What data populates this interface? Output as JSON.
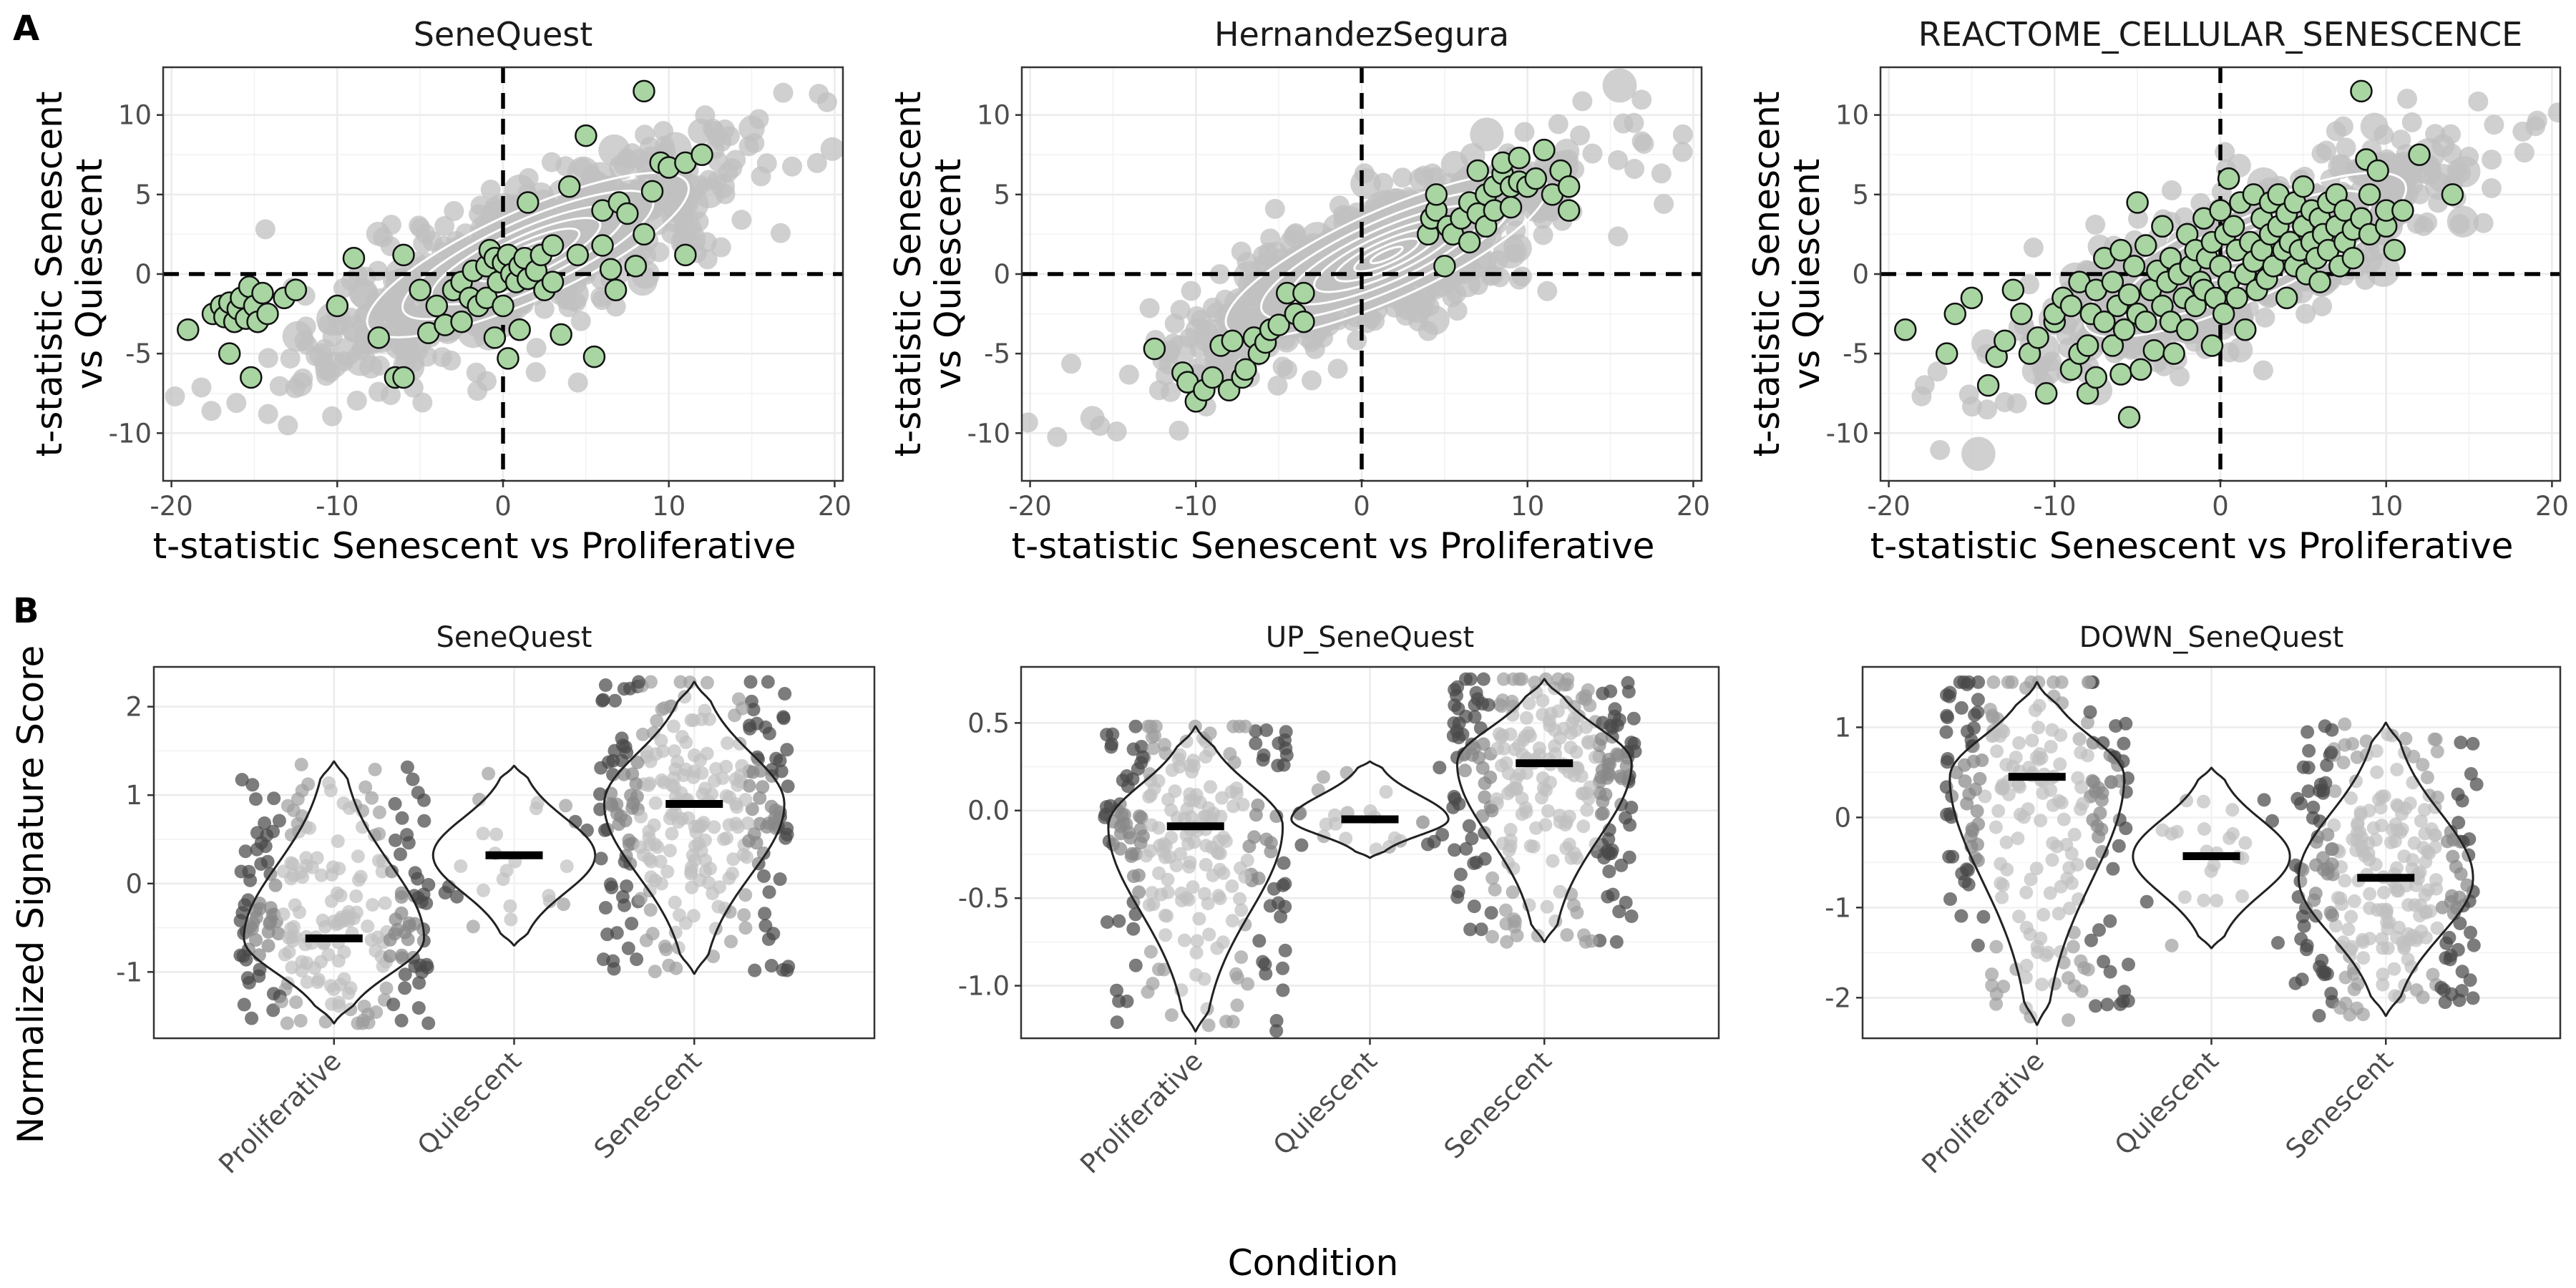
{
  "panel_labels": [
    "A",
    "B"
  ],
  "colors": {
    "background_cloud": "#c0c0c0",
    "highlight_fill": "#a8d5a2",
    "contour": "#ffffff",
    "jitter_point": "#4a4a4a",
    "jitter_point_light": "#9e9e9e",
    "median_bar": "#000000"
  },
  "shared_labels": {
    "scatter_x": "t-statistic Senescent vs Proliferative",
    "scatter_y_line1": "t-statistic Senescent",
    "scatter_y_line2": "vs Quiescent",
    "violin_y": "Normalized Signature Score",
    "violin_x": "Condition"
  },
  "chart_data": [
    {
      "type": "scatter",
      "title": "SeneQuest",
      "xlim": [
        -20.5,
        20.5
      ],
      "ylim": [
        -13,
        13
      ],
      "x_ticks": [
        -20,
        -10,
        0,
        10,
        20
      ],
      "y_ticks": [
        -10,
        -5,
        0,
        5,
        10
      ],
      "grid": true,
      "reference_lines": {
        "x": 0,
        "y": 0
      },
      "background": "approximately 12,000 genes forming a grey cloud with white density contours centred near (1, 1)",
      "highlighted_genes": [
        [
          -19,
          -3.5
        ],
        [
          -17.5,
          -2.5
        ],
        [
          -17,
          -2
        ],
        [
          -16.8,
          -2.7
        ],
        [
          -16.5,
          -1.8
        ],
        [
          -16.2,
          -3
        ],
        [
          -16,
          -2.2
        ],
        [
          -15.8,
          -1.5
        ],
        [
          -15.5,
          -2.8
        ],
        [
          -15.3,
          -0.8
        ],
        [
          -15,
          -2
        ],
        [
          -14.8,
          -3
        ],
        [
          -14.5,
          -1.2
        ],
        [
          -14.2,
          -2.5
        ],
        [
          -16.5,
          -5
        ],
        [
          -15.2,
          -6.5
        ],
        [
          -13.2,
          -1.5
        ],
        [
          -12.5,
          -1
        ],
        [
          -10,
          -2
        ],
        [
          -9,
          1
        ],
        [
          -7.5,
          -4
        ],
        [
          -6.5,
          -6.5
        ],
        [
          -6,
          -6.5
        ],
        [
          -6,
          1.2
        ],
        [
          -5,
          -1
        ],
        [
          -4.5,
          -3.7
        ],
        [
          -4,
          -2
        ],
        [
          -3.5,
          -3.2
        ],
        [
          -3,
          -1
        ],
        [
          -2.5,
          -3
        ],
        [
          -2.5,
          -0.5
        ],
        [
          -2,
          -1.5
        ],
        [
          -1.8,
          0.2
        ],
        [
          -1.5,
          -2
        ],
        [
          -1,
          0.5
        ],
        [
          -1,
          -1.5
        ],
        [
          -0.8,
          1.5
        ],
        [
          -0.5,
          1
        ],
        [
          -0.5,
          -4
        ],
        [
          -0.3,
          -0.5
        ],
        [
          0,
          0.7
        ],
        [
          0,
          -2
        ],
        [
          0.3,
          1.2
        ],
        [
          0.3,
          -5.3
        ],
        [
          0.5,
          0
        ],
        [
          0.8,
          -0.5
        ],
        [
          1,
          0.5
        ],
        [
          1,
          -3.5
        ],
        [
          1.3,
          1
        ],
        [
          1.5,
          -0.3
        ],
        [
          1.5,
          4.5
        ],
        [
          2,
          0.2
        ],
        [
          2.3,
          1.2
        ],
        [
          2.5,
          -1
        ],
        [
          3,
          1.8
        ],
        [
          3,
          -0.5
        ],
        [
          3.5,
          -3.8
        ],
        [
          4,
          5.5
        ],
        [
          4.5,
          1.2
        ],
        [
          5,
          8.7
        ],
        [
          5.5,
          -5.2
        ],
        [
          6,
          4
        ],
        [
          6,
          1.8
        ],
        [
          6.5,
          0.3
        ],
        [
          6.8,
          -1
        ],
        [
          7,
          4.5
        ],
        [
          7.5,
          3.8
        ],
        [
          8,
          0.5
        ],
        [
          8.5,
          2.5
        ],
        [
          9,
          5.2
        ],
        [
          9.5,
          7
        ],
        [
          10,
          6.7
        ],
        [
          11,
          1.2
        ],
        [
          11,
          7
        ],
        [
          12,
          7.5
        ],
        [
          8.5,
          11.5
        ]
      ]
    },
    {
      "type": "scatter",
      "title": "HernandezSegura",
      "xlim": [
        -20.5,
        20.5
      ],
      "ylim": [
        -13,
        13
      ],
      "x_ticks": [
        -20,
        -10,
        0,
        10,
        20
      ],
      "y_ticks": [
        -10,
        -5,
        0,
        5,
        10
      ],
      "grid": true,
      "reference_lines": {
        "x": 0,
        "y": 0
      },
      "highlighted_genes": [
        [
          -12.5,
          -4.7
        ],
        [
          -10.8,
          -6.2
        ],
        [
          -10.5,
          -6.8
        ],
        [
          -10,
          -8
        ],
        [
          -9.5,
          -7.3
        ],
        [
          -9,
          -6.5
        ],
        [
          -8,
          -7.3
        ],
        [
          -8.5,
          -4.5
        ],
        [
          -7.8,
          -4.2
        ],
        [
          -7.2,
          -6.5
        ],
        [
          -7,
          -6
        ],
        [
          -6.5,
          -4
        ],
        [
          -6.2,
          -5
        ],
        [
          -5.8,
          -4.3
        ],
        [
          -5.5,
          -3.5
        ],
        [
          -5,
          -3.2
        ],
        [
          -4.5,
          -1.2
        ],
        [
          -4,
          -2.5
        ],
        [
          -3.5,
          -1.2
        ],
        [
          -3.5,
          -3
        ],
        [
          4,
          2.5
        ],
        [
          4.2,
          3.5
        ],
        [
          4.5,
          4
        ],
        [
          4.5,
          5
        ],
        [
          5,
          0.5
        ],
        [
          5.2,
          3
        ],
        [
          5.5,
          2.5
        ],
        [
          6,
          3.5
        ],
        [
          6.5,
          4.5
        ],
        [
          6.5,
          2
        ],
        [
          7,
          3.8
        ],
        [
          7,
          6.5
        ],
        [
          7.5,
          5
        ],
        [
          7.5,
          3
        ],
        [
          8,
          5.5
        ],
        [
          8,
          4
        ],
        [
          8.5,
          6.3
        ],
        [
          8.5,
          7
        ],
        [
          9,
          5.5
        ],
        [
          9,
          4.2
        ],
        [
          9.5,
          5.8
        ],
        [
          9.5,
          7.3
        ],
        [
          10,
          5.5
        ],
        [
          10.5,
          6
        ],
        [
          11,
          7.8
        ],
        [
          11.5,
          5
        ],
        [
          12,
          6.5
        ],
        [
          12.5,
          4
        ],
        [
          12.5,
          5.5
        ]
      ]
    },
    {
      "type": "scatter",
      "title": "REACTOME_CELLULAR_SENESCENCE",
      "xlim": [
        -20.5,
        20.5
      ],
      "ylim": [
        -13,
        13
      ],
      "x_ticks": [
        -20,
        -10,
        0,
        10,
        20
      ],
      "y_ticks": [
        -10,
        -5,
        0,
        5,
        10
      ],
      "grid": true,
      "reference_lines": {
        "x": 0,
        "y": 0
      },
      "highlighted_genes": [
        [
          -19,
          -3.5
        ],
        [
          -16.5,
          -5
        ],
        [
          -16,
          -2.5
        ],
        [
          -15,
          -1.5
        ],
        [
          -14,
          -7
        ],
        [
          -13.5,
          -5.2
        ],
        [
          -13,
          -4.2
        ],
        [
          -12.5,
          -1
        ],
        [
          -12,
          -2.5
        ],
        [
          -11.5,
          -5
        ],
        [
          -11,
          -4
        ],
        [
          -10.5,
          -7.5
        ],
        [
          -10,
          -3
        ],
        [
          -10,
          -2.5
        ],
        [
          -9.5,
          -1.5
        ],
        [
          -9,
          -6
        ],
        [
          -9,
          -2
        ],
        [
          -8.5,
          -5
        ],
        [
          -8.5,
          -0.5
        ],
        [
          -8,
          -4.5
        ],
        [
          -8,
          -7.5
        ],
        [
          -7.8,
          -2.5
        ],
        [
          -7.5,
          -6.5
        ],
        [
          -7.5,
          -1
        ],
        [
          -7,
          -3
        ],
        [
          -7,
          1
        ],
        [
          -6.5,
          -4.5
        ],
        [
          -6.5,
          -0.5
        ],
        [
          -6.2,
          -2
        ],
        [
          -6,
          -6.3
        ],
        [
          -6,
          1.5
        ],
        [
          -5.8,
          -3.5
        ],
        [
          -5.5,
          -1.3
        ],
        [
          -5.5,
          -9
        ],
        [
          -5.2,
          0.5
        ],
        [
          -5,
          -2.5
        ],
        [
          -5,
          4.5
        ],
        [
          -4.8,
          -6
        ],
        [
          -4.5,
          -3
        ],
        [
          -4.5,
          1.8
        ],
        [
          -4.2,
          -1
        ],
        [
          -4,
          -4.8
        ],
        [
          -3.8,
          0.2
        ],
        [
          -3.5,
          -2
        ],
        [
          -3.5,
          3
        ],
        [
          -3.2,
          -0.5
        ],
        [
          -3,
          -3
        ],
        [
          -3,
          1
        ],
        [
          -2.8,
          -5
        ],
        [
          -2.5,
          0
        ],
        [
          -2.2,
          -1.5
        ],
        [
          -2,
          2.5
        ],
        [
          -2,
          -3.5
        ],
        [
          -1.8,
          0.5
        ],
        [
          -1.5,
          -2
        ],
        [
          -1.5,
          1.5
        ],
        [
          -1.2,
          -0.5
        ],
        [
          -1,
          3.5
        ],
        [
          -1,
          -1
        ],
        [
          -0.8,
          1
        ],
        [
          -0.5,
          -4.5
        ],
        [
          -0.5,
          2
        ],
        [
          -0.3,
          -1.5
        ],
        [
          0,
          0.5
        ],
        [
          0,
          4
        ],
        [
          0.2,
          -2.5
        ],
        [
          0.3,
          2.5
        ],
        [
          0.5,
          6
        ],
        [
          0.5,
          -0.5
        ],
        [
          0.8,
          3
        ],
        [
          1,
          1.5
        ],
        [
          1,
          -1.5
        ],
        [
          1.2,
          4.5
        ],
        [
          1.5,
          0
        ],
        [
          1.5,
          -3.5
        ],
        [
          1.8,
          2
        ],
        [
          2,
          5
        ],
        [
          2,
          0.8
        ],
        [
          2.2,
          -1
        ],
        [
          2.5,
          3.5
        ],
        [
          2.5,
          1.5
        ],
        [
          2.8,
          -0.3
        ],
        [
          3,
          4.5
        ],
        [
          3,
          2.5
        ],
        [
          3.2,
          0.5
        ],
        [
          3.5,
          3
        ],
        [
          3.5,
          5
        ],
        [
          3.8,
          1.5
        ],
        [
          4,
          -1.5
        ],
        [
          4,
          3.8
        ],
        [
          4.2,
          2
        ],
        [
          4.5,
          4.5
        ],
        [
          4.5,
          0.5
        ],
        [
          4.8,
          1.5
        ],
        [
          5,
          3
        ],
        [
          5,
          5.5
        ],
        [
          5.2,
          0
        ],
        [
          5.5,
          2
        ],
        [
          5.5,
          4
        ],
        [
          5.8,
          1
        ],
        [
          6,
          3.5
        ],
        [
          6,
          -0.5
        ],
        [
          6.2,
          2.5
        ],
        [
          6.5,
          4.5
        ],
        [
          6.5,
          1.5
        ],
        [
          7,
          3
        ],
        [
          7,
          5
        ],
        [
          7.2,
          0.5
        ],
        [
          7.5,
          2
        ],
        [
          7.5,
          4
        ],
        [
          8,
          2.8
        ],
        [
          8,
          1
        ],
        [
          8.5,
          3.5
        ],
        [
          8.5,
          11.5
        ],
        [
          8.8,
          7.2
        ],
        [
          9,
          2.5
        ],
        [
          9,
          5
        ],
        [
          9.5,
          6.5
        ],
        [
          10,
          3
        ],
        [
          10,
          4
        ],
        [
          10.5,
          1.5
        ],
        [
          11,
          4
        ],
        [
          12,
          7.5
        ],
        [
          14,
          5
        ]
      ]
    },
    {
      "type": "violin",
      "title": "SeneQuest",
      "categories": [
        "Proliferative",
        "Quiescent",
        "Senescent"
      ],
      "ylim": [
        -1.75,
        2.45
      ],
      "y_ticks": [
        -1,
        0,
        1,
        2
      ],
      "grid": true,
      "medians": [
        -0.62,
        0.32,
        0.9
      ],
      "ranges": [
        [
          -1.58,
          1.38
        ],
        [
          -0.7,
          1.33
        ],
        [
          -1.02,
          2.28
        ]
      ],
      "point_counts": [
        240,
        25,
        280
      ]
    },
    {
      "type": "violin",
      "title": "UP_SeneQuest",
      "categories": [
        "Proliferative",
        "Quiescent",
        "Senescent"
      ],
      "ylim": [
        -1.3,
        0.82
      ],
      "y_ticks": [
        -1.0,
        -0.5,
        0.0,
        0.5
      ],
      "grid": true,
      "medians": [
        -0.09,
        -0.05,
        0.27
      ],
      "ranges": [
        [
          -1.26,
          0.48
        ],
        [
          -0.27,
          0.28
        ],
        [
          -0.75,
          0.75
        ]
      ],
      "point_counts": [
        240,
        25,
        280
      ]
    },
    {
      "type": "violin",
      "title": "DOWN_SeneQuest",
      "categories": [
        "Proliferative",
        "Quiescent",
        "Senescent"
      ],
      "ylim": [
        -2.45,
        1.67
      ],
      "y_ticks": [
        -2,
        -1,
        0,
        1
      ],
      "grid": true,
      "medians": [
        0.45,
        -0.43,
        -0.67
      ],
      "ranges": [
        [
          -2.3,
          1.5
        ],
        [
          -1.45,
          0.55
        ],
        [
          -2.2,
          1.05
        ]
      ],
      "point_counts": [
        240,
        25,
        280
      ]
    }
  ]
}
